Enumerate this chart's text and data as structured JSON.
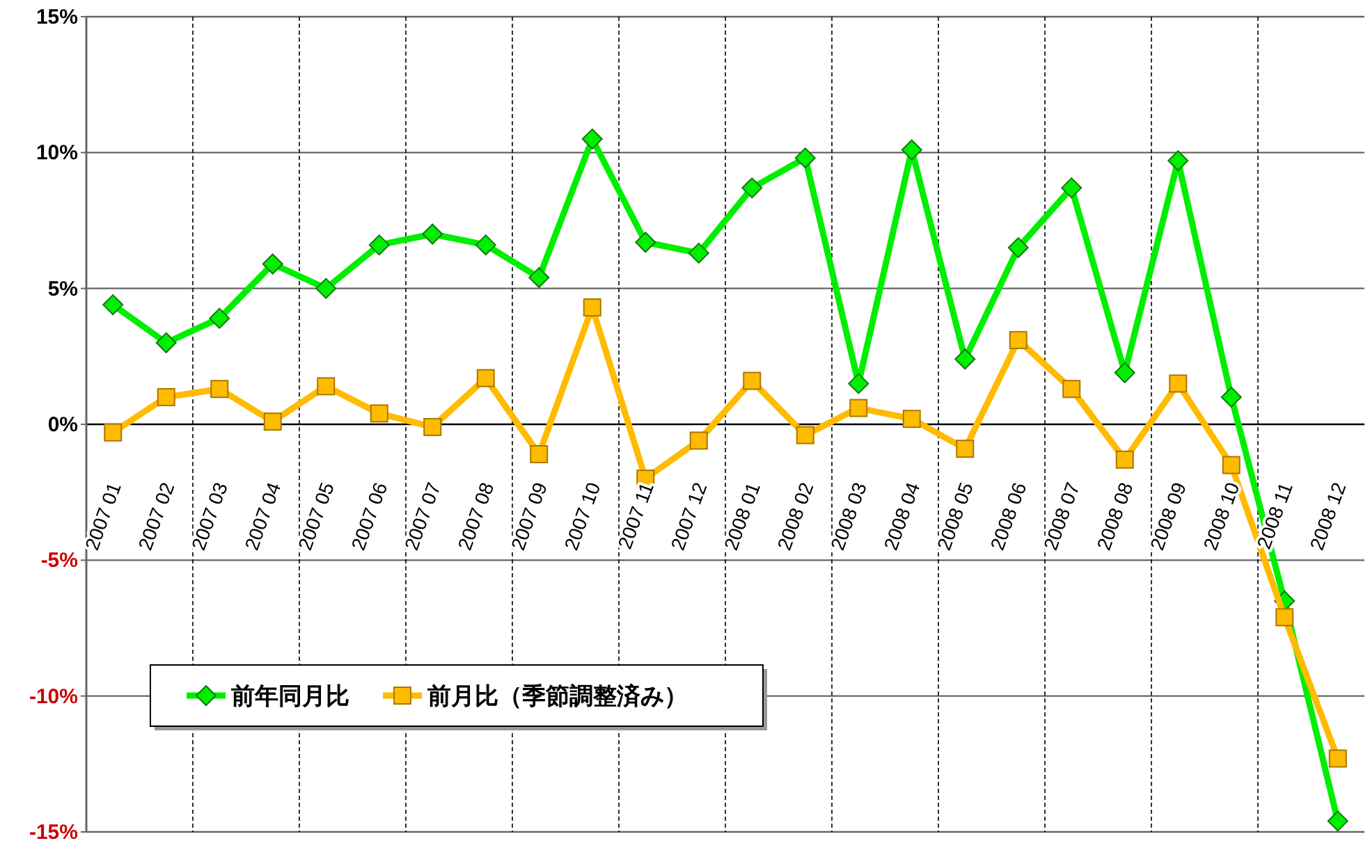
{
  "chart_data": {
    "type": "line",
    "categories": [
      "2007 01",
      "2007 02",
      "2007 03",
      "2007 04",
      "2007 05",
      "2007 06",
      "2007 07",
      "2007 08",
      "2007 09",
      "2007 10",
      "2007 11",
      "2007 12",
      "2008 01",
      "2008 02",
      "2008 03",
      "2008 04",
      "2008 05",
      "2008 06",
      "2008 07",
      "2008 08",
      "2008 09",
      "2008 10",
      "2008 11",
      "2008 12"
    ],
    "series": [
      {
        "name": "前年同月比",
        "color": "#00ee00",
        "marker": "diamond",
        "values": [
          4.4,
          3.0,
          3.9,
          5.9,
          5.0,
          6.6,
          7.0,
          6.6,
          5.4,
          10.5,
          6.7,
          6.3,
          8.7,
          9.8,
          1.5,
          10.1,
          2.4,
          6.5,
          8.7,
          1.9,
          9.7,
          1.0,
          -6.5,
          -14.6
        ]
      },
      {
        "name": "前月比（季節調整済み）",
        "color": "#ffbb00",
        "marker": "square",
        "values": [
          -0.3,
          1.0,
          1.3,
          0.1,
          1.4,
          0.4,
          -0.1,
          1.7,
          -1.1,
          4.3,
          -2.0,
          -0.6,
          1.6,
          -0.4,
          0.6,
          0.2,
          -0.9,
          3.1,
          1.3,
          -1.3,
          1.5,
          -1.5,
          -7.1,
          -12.3
        ]
      }
    ],
    "ylim": [
      -15,
      15
    ],
    "yticks": [
      {
        "value": -15,
        "label": "-15%"
      },
      {
        "value": -10,
        "label": "-10%"
      },
      {
        "value": -5,
        "label": "-5%"
      },
      {
        "value": 0,
        "label": "0%"
      },
      {
        "value": 5,
        "label": "5%"
      },
      {
        "value": 10,
        "label": "10%"
      },
      {
        "value": 15,
        "label": "15%"
      }
    ],
    "grid": true,
    "legend": "bottom left",
    "line_style": "solid"
  }
}
